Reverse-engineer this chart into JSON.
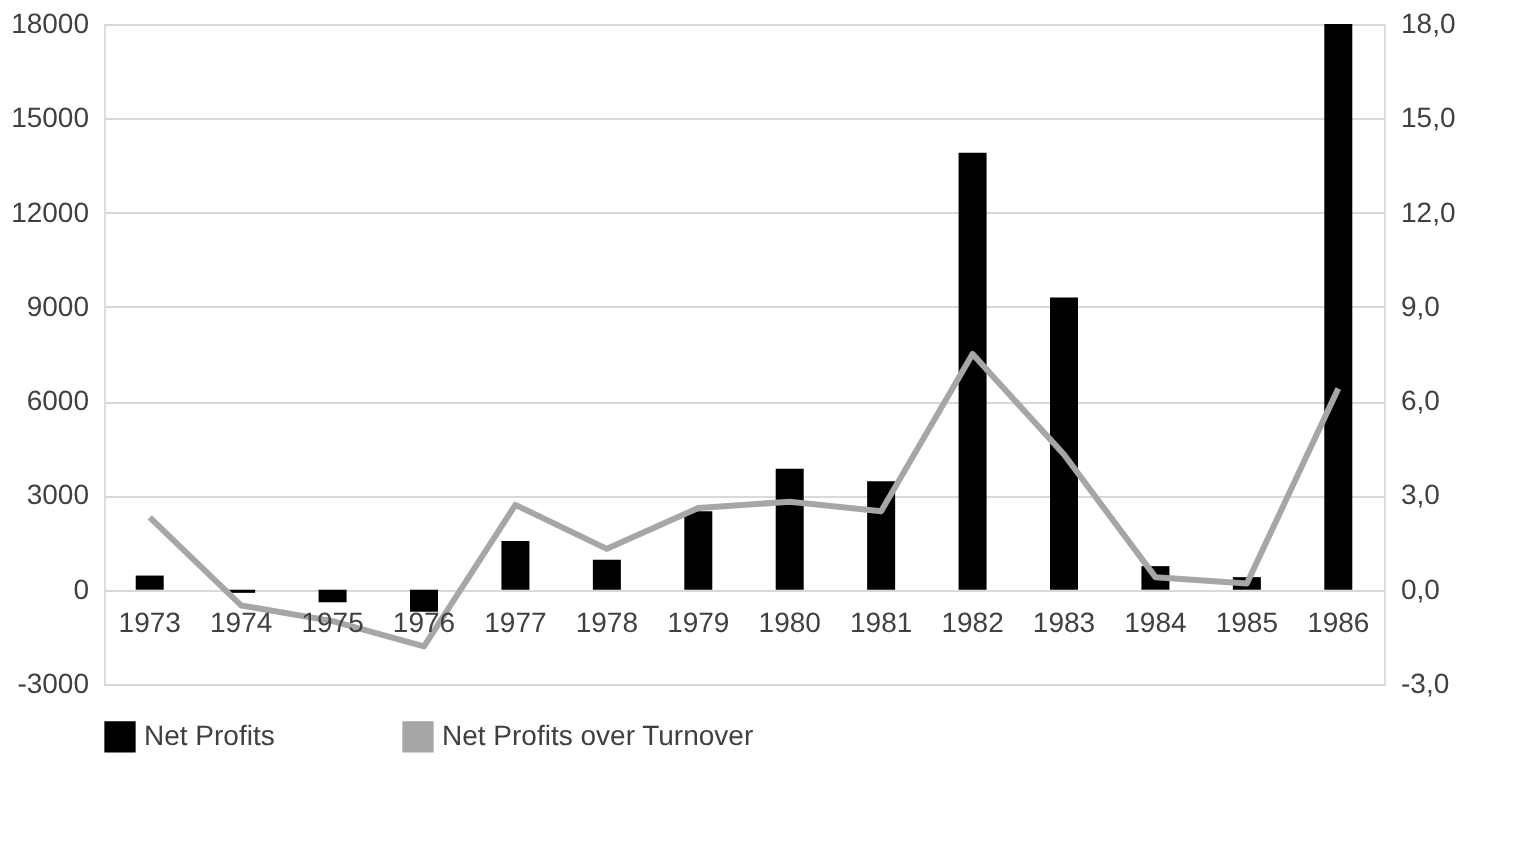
{
  "chart_data": {
    "type": "bar",
    "categories": [
      "1973",
      "1974",
      "1975",
      "1976",
      "1977",
      "1978",
      "1979",
      "1980",
      "1981",
      "1982",
      "1983",
      "1984",
      "1985",
      "1986"
    ],
    "series": [
      {
        "name": "Net Profits",
        "color": "#000000",
        "values": [
          450,
          -100,
          -400,
          -700,
          1550,
          950,
          2500,
          3850,
          3450,
          13900,
          9300,
          750,
          400,
          18000
        ]
      },
      {
        "name": "Net Profits over Turnover",
        "type": "line",
        "axis": "y2",
        "color": "#a6a6a6",
        "values": [
          2.3,
          -0.5,
          -1.0,
          -1.8,
          2.7,
          1.3,
          2.6,
          2.8,
          2.5,
          7.5,
          4.3,
          0.4,
          0.2,
          6.4
        ]
      }
    ],
    "ylim": [
      -3000,
      18000
    ],
    "yticks": [
      -3000,
      0,
      3000,
      6000,
      9000,
      12000,
      15000,
      18000
    ],
    "y2lim": [
      -3,
      18
    ],
    "y2ticks": [
      {
        "value": -3,
        "label": "-3,0"
      },
      {
        "value": 0,
        "label": "0,0"
      },
      {
        "value": 3,
        "label": "3,0"
      },
      {
        "value": 6,
        "label": "6,0"
      },
      {
        "value": 9,
        "label": "9,0"
      },
      {
        "value": 12,
        "label": "12,0"
      },
      {
        "value": 15,
        "label": "15,0"
      },
      {
        "value": 18,
        "label": "18,0"
      }
    ],
    "grid": "y",
    "legend": "bottom",
    "line_style": "solid",
    "marker": "none"
  }
}
